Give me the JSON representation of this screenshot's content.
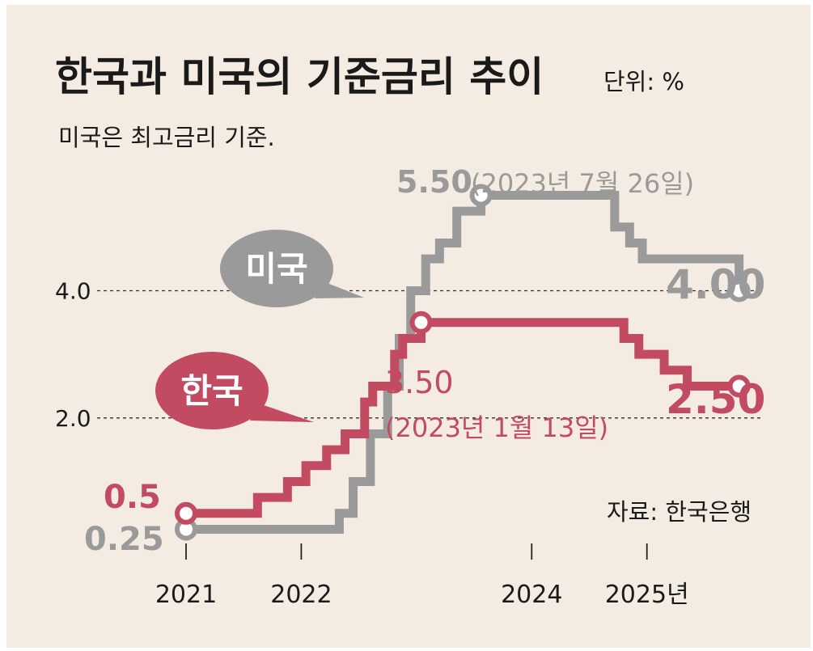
{
  "header": {
    "title": "한국과 미국의 기준금리 추이",
    "unit": "단위: %",
    "subtitle": "미국은 최고금리 기준."
  },
  "source": "자료: 한국은행",
  "colors": {
    "background": "#f4ece3",
    "korea": "#c24b62",
    "us": "#9a9a9a",
    "text": "#1a1a1a"
  },
  "chart_data": {
    "type": "line",
    "step": true,
    "x_unit": "year",
    "xlim": [
      2021.0,
      2025.95
    ],
    "ylim": [
      -0.1,
      5.9
    ],
    "y_ticks": [
      {
        "value": 2.0,
        "label": "2.0"
      },
      {
        "value": 4.0,
        "label": "4.0"
      }
    ],
    "x_ticks": [
      {
        "value": 2021,
        "label": "2021"
      },
      {
        "value": 2022,
        "label": "2022"
      },
      {
        "value": 2024,
        "label": "2024"
      },
      {
        "value": 2025,
        "label": "2025년"
      }
    ],
    "series": [
      {
        "name": "미국",
        "color": "#9a9a9a",
        "x": [
          2021.0,
          2022.2,
          2022.33,
          2022.45,
          2022.6,
          2022.75,
          2022.85,
          2022.95,
          2023.08,
          2023.2,
          2023.35,
          2023.56,
          2024.72,
          2024.85,
          2024.96,
          2025.8
        ],
        "y": [
          0.25,
          0.25,
          0.5,
          1.0,
          1.75,
          2.5,
          3.25,
          4.0,
          4.5,
          4.75,
          5.25,
          5.5,
          5.0,
          4.75,
          4.5,
          4.0
        ]
      },
      {
        "name": "한국",
        "color": "#c24b62",
        "x": [
          2021.0,
          2021.62,
          2021.88,
          2022.04,
          2022.22,
          2022.38,
          2022.55,
          2022.62,
          2022.81,
          2022.88,
          2023.04,
          2024.8,
          2024.93,
          2025.15,
          2025.35,
          2025.8
        ],
        "y": [
          0.5,
          0.75,
          1.0,
          1.25,
          1.5,
          1.75,
          2.25,
          2.5,
          3.0,
          3.25,
          3.5,
          3.25,
          3.0,
          2.75,
          2.5,
          2.5
        ]
      }
    ],
    "bubbles": {
      "us": "미국",
      "korea": "한국"
    },
    "annotations": {
      "us_start": "0.25",
      "kr_start": "0.5",
      "us_peak_value": "5.50",
      "us_peak_date": "(2023년 7월 26일)",
      "kr_peak_value": "3.50",
      "kr_peak_date": "(2023년 1월 13일)",
      "us_end": "4.00",
      "kr_end": "2.50"
    }
  }
}
